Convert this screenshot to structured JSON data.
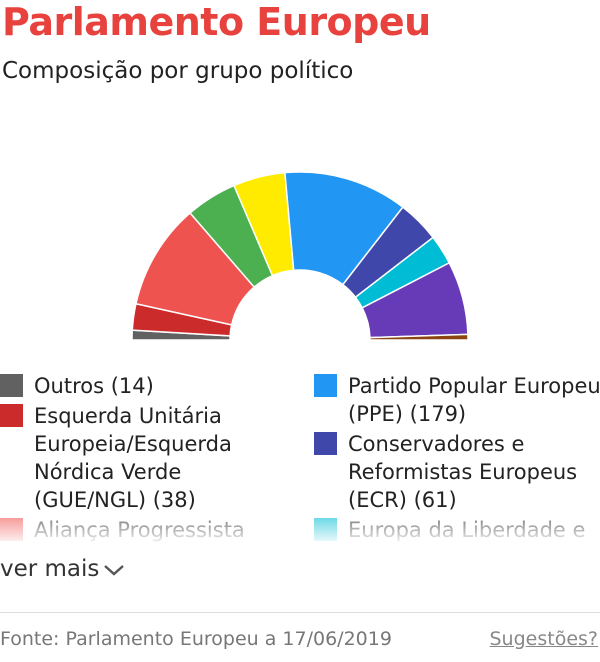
{
  "header": {
    "title": "Parlamento Europeu",
    "subtitle": "Composição por grupo político"
  },
  "chart_data": {
    "type": "hemicycle",
    "units": "seats",
    "series": [
      {
        "name": "Outros",
        "value": 14,
        "color": "#616161",
        "label": "Outros (14)"
      },
      {
        "name": "Esquerda Unitária Europeia/Esquerda Nórdica Verde (GUE/NGL)",
        "value": 38,
        "color": "#cc2b2b",
        "label": "Esquerda Unitária Europeia/Esquerda Nórdica Verde (GUE/NGL) (38)"
      },
      {
        "name": "Aliança Progressista",
        "value": 153,
        "color": "#ef5350",
        "label": "Aliança Progressista"
      },
      {
        "name": "",
        "value": 74,
        "color": "#4caf50",
        "label": ""
      },
      {
        "name": "",
        "value": 75,
        "color": "#ffeb00",
        "label": ""
      },
      {
        "name": "Partido Popular Europeu (PPE)",
        "value": 179,
        "color": "#2196f3",
        "label": "Partido Popular Europeu (PPE) (179)"
      },
      {
        "name": "Conservadores e Reformistas Europeus (ECR)",
        "value": 61,
        "color": "#3f48aa",
        "label": "Conservadores e Reformistas Europeus (ECR) (61)"
      },
      {
        "name": "Europa da Liberdade e",
        "value": 43,
        "color": "#00bcd4",
        "label": "Europa da Liberdade e"
      },
      {
        "name": "",
        "value": 106,
        "color": "#673ab7",
        "label": ""
      },
      {
        "name": "",
        "value": 8,
        "color": "#8b4513",
        "label": ""
      }
    ]
  },
  "legend_left": [
    0,
    1,
    2
  ],
  "legend_right": [
    5,
    6,
    7
  ],
  "more": {
    "label": "ver mais",
    "icon": "chevron-down-icon"
  },
  "footer": {
    "source": "Fonte: Parlamento Europeu a 17/06/2019",
    "suggest": "Sugestões?"
  }
}
